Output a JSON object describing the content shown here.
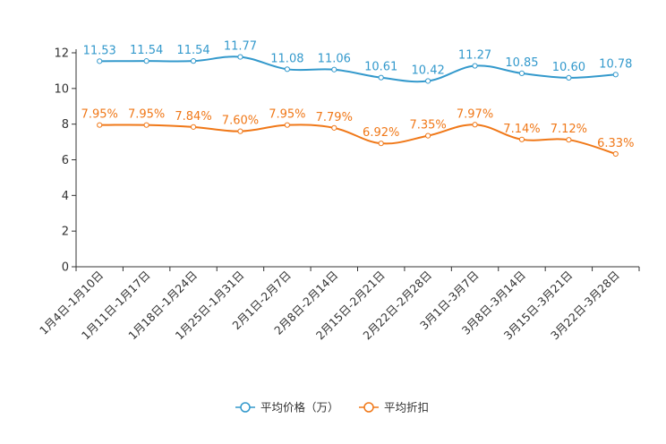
{
  "chart_data": {
    "type": "line",
    "categories": [
      "1月4日-1月10日",
      "1月11日-1月17日",
      "1月18日-1月24日",
      "1月25日-1月31日",
      "2月1日-2月7日",
      "2月8日-2月14日",
      "2月15日-2月21日",
      "2月22日-2月28日",
      "3月1日-3月7日",
      "3月8日-3月14日",
      "3月15日-3月21日",
      "3月22日-3月28日"
    ],
    "series": [
      {
        "name": "平均价格（万）",
        "color": "#3399cc",
        "values": [
          11.53,
          11.54,
          11.54,
          11.77,
          11.08,
          11.06,
          10.61,
          10.42,
          11.27,
          10.85,
          10.6,
          10.78
        ],
        "labels": [
          "11.53",
          "11.54",
          "11.54",
          "11.77",
          "11.08",
          "11.06",
          "10.61",
          "10.42",
          "11.27",
          "10.85",
          "10.60",
          "10.78"
        ]
      },
      {
        "name": "平均折扣",
        "color": "#f07818",
        "values": [
          7.95,
          7.95,
          7.84,
          7.6,
          7.95,
          7.79,
          6.92,
          7.35,
          7.97,
          7.14,
          7.12,
          6.33
        ],
        "labels": [
          "7.95%",
          "7.95%",
          "7.84%",
          "7.60%",
          "7.95%",
          "7.79%",
          "6.92%",
          "7.35%",
          "7.97%",
          "7.14%",
          "7.12%",
          "6.33%"
        ]
      }
    ],
    "yticks": [
      "0",
      "2",
      "4",
      "6",
      "8",
      "10",
      "12"
    ],
    "ylim": [
      0,
      12
    ],
    "xlabel": "",
    "ylabel": "",
    "legend": "bottom-center"
  }
}
